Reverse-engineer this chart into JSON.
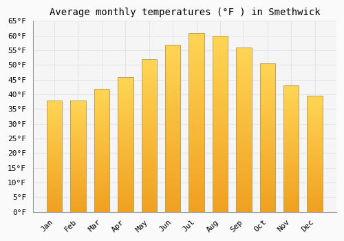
{
  "title": "Average monthly temperatures (°F ) in Smethwick",
  "months": [
    "Jan",
    "Feb",
    "Mar",
    "Apr",
    "May",
    "Jun",
    "Jul",
    "Aug",
    "Sep",
    "Oct",
    "Nov",
    "Dec"
  ],
  "values": [
    38,
    38,
    42,
    46,
    52,
    57,
    61,
    60,
    56,
    50.5,
    43,
    39.5
  ],
  "bar_color_bottom": "#F0A020",
  "bar_color_top": "#FFD555",
  "bar_edge_color": "#B8A060",
  "ylim": [
    0,
    65
  ],
  "yticks": [
    0,
    5,
    10,
    15,
    20,
    25,
    30,
    35,
    40,
    45,
    50,
    55,
    60,
    65
  ],
  "background_color": "#FAFAFA",
  "plot_bg_color": "#F5F5F5",
  "grid_color": "#DDDDDD",
  "title_fontsize": 10,
  "tick_fontsize": 8,
  "font_family": "monospace"
}
